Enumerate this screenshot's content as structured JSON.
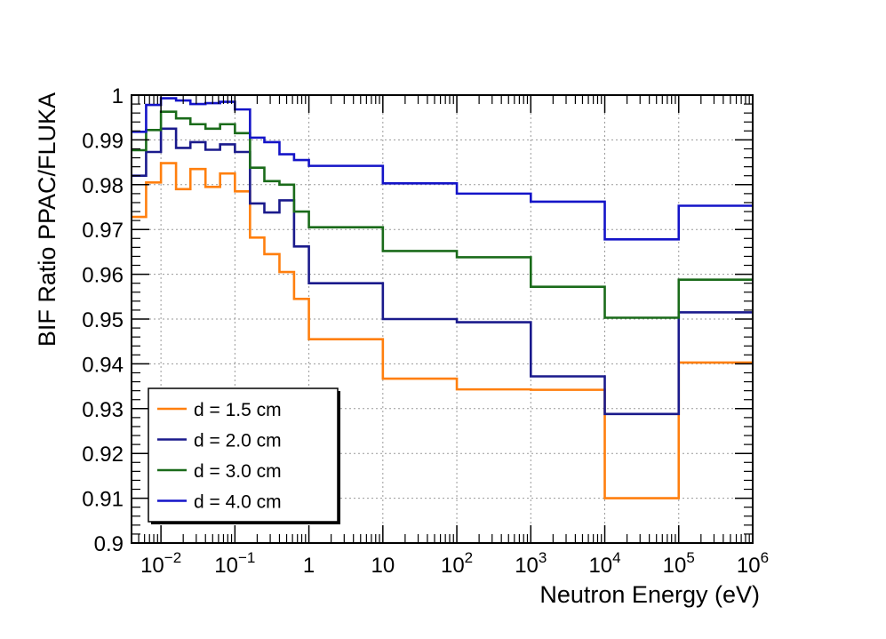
{
  "chart_data": {
    "type": "line",
    "step": true,
    "xlabel": "Neutron Energy (eV)",
    "ylabel": "BIF Ratio PPAC/FLUKA",
    "xscale": "log",
    "xlim": [
      0.004,
      1000000
    ],
    "ylim": [
      0.9,
      1.0
    ],
    "grid": true,
    "legend_position": "bottom-left",
    "x_ticks": [
      {
        "value": 0.01,
        "base": "10",
        "exp": "−2"
      },
      {
        "value": 0.1,
        "base": "10",
        "exp": "−1"
      },
      {
        "value": 1,
        "base": "1",
        "exp": ""
      },
      {
        "value": 10,
        "base": "10",
        "exp": ""
      },
      {
        "value": 100,
        "base": "10",
        "exp": "2"
      },
      {
        "value": 1000,
        "base": "10",
        "exp": "3"
      },
      {
        "value": 10000,
        "base": "10",
        "exp": "4"
      },
      {
        "value": 100000,
        "base": "10",
        "exp": "5"
      },
      {
        "value": 1000000,
        "base": "10",
        "exp": "6"
      }
    ],
    "y_ticks": [
      {
        "value": 0.9,
        "label": "0.9"
      },
      {
        "value": 0.91,
        "label": "0.91"
      },
      {
        "value": 0.92,
        "label": "0.92"
      },
      {
        "value": 0.93,
        "label": "0.93"
      },
      {
        "value": 0.94,
        "label": "0.94"
      },
      {
        "value": 0.95,
        "label": "0.95"
      },
      {
        "value": 0.96,
        "label": "0.96"
      },
      {
        "value": 0.97,
        "label": "0.97"
      },
      {
        "value": 0.98,
        "label": "0.98"
      },
      {
        "value": 0.99,
        "label": "0.99"
      },
      {
        "value": 1.0,
        "label": "1"
      }
    ],
    "bin_edges": [
      0.004,
      0.0063,
      0.01,
      0.016,
      0.025,
      0.04,
      0.063,
      0.1,
      0.16,
      0.25,
      0.4,
      0.63,
      1,
      10,
      100,
      1000,
      10000,
      100000,
      1000000
    ],
    "series": [
      {
        "name": "d = 1.5 cm",
        "color": "#ff7f0e",
        "values": [
          0.9728,
          0.9805,
          0.9848,
          0.979,
          0.9835,
          0.9795,
          0.9825,
          0.9785,
          0.9682,
          0.9645,
          0.9605,
          0.9545,
          0.9455,
          0.9367,
          0.9343,
          0.9342,
          0.91,
          0.9403
        ]
      },
      {
        "name": "d = 2.0 cm",
        "color": "#1a1a8c",
        "values": [
          0.982,
          0.9873,
          0.9925,
          0.9882,
          0.9895,
          0.9878,
          0.989,
          0.9873,
          0.9758,
          0.9738,
          0.9765,
          0.9662,
          0.958,
          0.95,
          0.9493,
          0.9372,
          0.9288,
          0.9515
        ]
      },
      {
        "name": "d = 3.0 cm",
        "color": "#1a6b1a",
        "values": [
          0.9877,
          0.9922,
          0.9963,
          0.9948,
          0.9935,
          0.9925,
          0.9935,
          0.9915,
          0.9838,
          0.9808,
          0.98,
          0.974,
          0.9705,
          0.9652,
          0.9638,
          0.9572,
          0.9503,
          0.9588
        ]
      },
      {
        "name": "d = 4.0 cm",
        "color": "#1414c8",
        "values": [
          0.9918,
          0.9978,
          0.9993,
          0.9988,
          0.998,
          0.9982,
          0.9985,
          0.9968,
          0.9905,
          0.9895,
          0.9868,
          0.9855,
          0.9842,
          0.9803,
          0.978,
          0.9762,
          0.9678,
          0.9753
        ]
      }
    ]
  }
}
